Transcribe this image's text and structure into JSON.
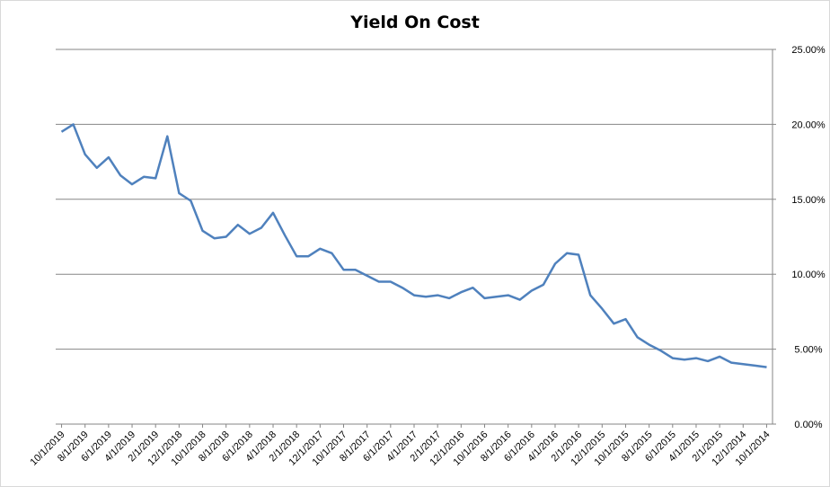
{
  "chart_data": {
    "type": "line",
    "title": "Yield On Cost",
    "xlabel": "",
    "ylabel": "",
    "ylim": [
      0,
      0.25
    ],
    "y_ticks": [
      "0.00%",
      "5.00%",
      "10.00%",
      "15.00%",
      "20.00%",
      "25.00%"
    ],
    "y_axis_side": "right",
    "grid": "horizontal",
    "line_color": "#4f81bd",
    "x_tick_labels": [
      "10/1/2019",
      "8/1/2019",
      "6/1/2019",
      "4/1/2019",
      "2/1/2019",
      "12/1/2018",
      "10/1/2018",
      "8/1/2018",
      "6/1/2018",
      "4/1/2018",
      "2/1/2018",
      "12/1/2017",
      "10/1/2017",
      "8/1/2017",
      "6/1/2017",
      "4/1/2017",
      "2/1/2017",
      "12/1/2016",
      "10/1/2016",
      "8/1/2016",
      "6/1/2016",
      "4/1/2016",
      "2/1/2016",
      "12/1/2015",
      "10/1/2015",
      "8/1/2015",
      "6/1/2015",
      "4/1/2015",
      "2/1/2015",
      "12/1/2014",
      "10/1/2014"
    ],
    "series": [
      {
        "values": [
          0.195,
          0.2,
          0.18,
          0.171,
          0.178,
          0.166,
          0.16,
          0.165,
          0.164,
          0.192,
          0.154,
          0.149,
          0.129,
          0.124,
          0.125,
          0.133,
          0.127,
          0.131,
          0.141,
          0.126,
          0.112,
          0.112,
          0.117,
          0.114,
          0.103,
          0.103,
          0.099,
          0.095,
          0.095,
          0.091,
          0.086,
          0.085,
          0.086,
          0.084,
          0.088,
          0.091,
          0.084,
          0.085,
          0.086,
          0.083,
          0.089,
          0.093,
          0.107,
          0.114,
          0.113,
          0.086,
          0.077,
          0.067,
          0.07,
          0.058,
          0.053,
          0.049,
          0.044,
          0.043,
          0.044,
          0.042,
          0.045,
          0.041,
          0.04,
          0.039,
          0.038
        ]
      }
    ]
  }
}
